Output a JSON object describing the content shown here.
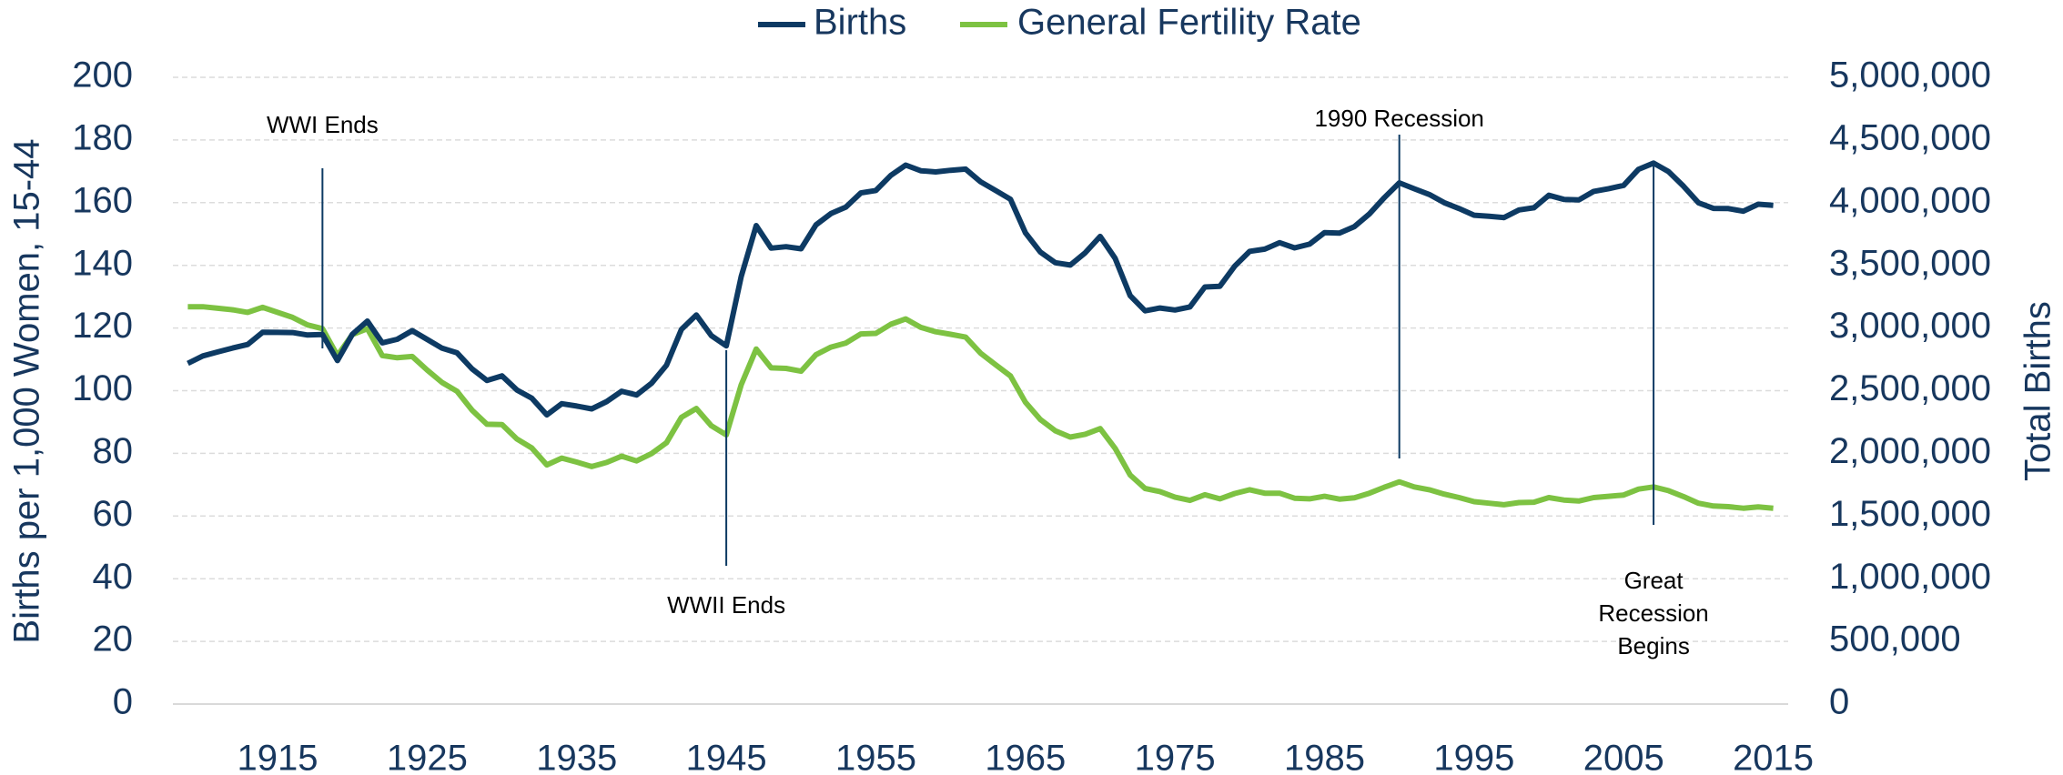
{
  "chart_data": {
    "type": "line",
    "x": [
      1909,
      1910,
      1911,
      1912,
      1913,
      1914,
      1915,
      1916,
      1917,
      1918,
      1919,
      1920,
      1921,
      1922,
      1923,
      1924,
      1925,
      1926,
      1927,
      1928,
      1929,
      1930,
      1931,
      1932,
      1933,
      1934,
      1935,
      1936,
      1937,
      1938,
      1939,
      1940,
      1941,
      1942,
      1943,
      1944,
      1945,
      1946,
      1947,
      1948,
      1949,
      1950,
      1951,
      1952,
      1953,
      1954,
      1955,
      1956,
      1957,
      1958,
      1959,
      1960,
      1961,
      1962,
      1963,
      1964,
      1965,
      1966,
      1967,
      1968,
      1969,
      1970,
      1971,
      1972,
      1973,
      1974,
      1975,
      1976,
      1977,
      1978,
      1979,
      1980,
      1981,
      1982,
      1983,
      1984,
      1985,
      1986,
      1987,
      1988,
      1989,
      1990,
      1991,
      1992,
      1993,
      1994,
      1995,
      1996,
      1997,
      1998,
      1999,
      2000,
      2001,
      2002,
      2003,
      2004,
      2005,
      2006,
      2007,
      2008,
      2009,
      2010,
      2011,
      2012,
      2013,
      2014,
      2015
    ],
    "series": [
      {
        "name": "Births",
        "color": "#0d3a63",
        "axis": "y2",
        "values": [
          2718000,
          2777000,
          2809000,
          2840000,
          2869000,
          2966000,
          2965000,
          2964000,
          2944000,
          2948000,
          2740000,
          2950000,
          3055000,
          2882000,
          2910000,
          2979000,
          2909000,
          2839000,
          2802000,
          2674000,
          2582000,
          2618000,
          2506000,
          2440000,
          2307000,
          2396000,
          2377000,
          2355000,
          2413000,
          2496000,
          2466000,
          2559000,
          2703000,
          2989000,
          3104000,
          2939000,
          2858000,
          3411000,
          3817000,
          3637000,
          3649000,
          3632000,
          3823000,
          3913000,
          3965000,
          4078000,
          4097000,
          4218000,
          4300000,
          4255000,
          4245000,
          4258000,
          4268000,
          4167000,
          4098000,
          4027000,
          3760000,
          3606000,
          3521000,
          3502000,
          3600000,
          3731000,
          3556000,
          3258000,
          3137000,
          3160000,
          3144000,
          3168000,
          3327000,
          3333000,
          3494000,
          3612000,
          3629000,
          3681000,
          3639000,
          3669000,
          3761000,
          3757000,
          3809000,
          3910000,
          4041000,
          4158000,
          4111000,
          4065000,
          4000000,
          3953000,
          3900000,
          3891000,
          3881000,
          3942000,
          3959000,
          4059000,
          4026000,
          4022000,
          4090000,
          4112000,
          4138000,
          4266000,
          4316000,
          4248000,
          4131000,
          3999000,
          3954000,
          3953000,
          3932000,
          3988000,
          3978000
        ]
      },
      {
        "name": "General Fertility Rate",
        "color": "#7dc242",
        "axis": "y",
        "values": [
          126.8,
          126.8,
          126.3,
          125.8,
          125.0,
          126.6,
          125.0,
          123.4,
          121.0,
          119.8,
          111.2,
          117.9,
          119.8,
          111.2,
          110.5,
          110.9,
          106.6,
          102.6,
          99.8,
          93.8,
          89.3,
          89.2,
          84.6,
          81.7,
          76.3,
          78.5,
          77.2,
          75.8,
          77.1,
          79.1,
          77.6,
          79.9,
          83.4,
          91.5,
          94.3,
          88.8,
          85.9,
          101.9,
          113.3,
          107.3,
          107.1,
          106.2,
          111.5,
          113.9,
          115.2,
          118.1,
          118.3,
          121.2,
          122.9,
          120.2,
          118.8,
          118.0,
          117.1,
          112.0,
          108.3,
          104.7,
          96.3,
          90.8,
          87.2,
          85.2,
          86.1,
          87.9,
          81.6,
          73.1,
          68.8,
          67.8,
          66.0,
          65.0,
          66.8,
          65.5,
          67.2,
          68.4,
          67.3,
          67.3,
          65.7,
          65.5,
          66.3,
          65.4,
          65.8,
          67.3,
          69.2,
          70.9,
          69.3,
          68.4,
          67.0,
          65.9,
          64.6,
          64.1,
          63.6,
          64.3,
          64.4,
          65.9,
          65.1,
          64.8,
          65.9,
          66.3,
          66.7,
          68.6,
          69.3,
          68.1,
          66.2,
          64.1,
          63.2,
          63.0,
          62.5,
          62.9,
          62.5
        ]
      }
    ],
    "ylabel": "Births per 1,000 Women, 15-44",
    "y2label": "Total Births",
    "xlim": [
      1908,
      2016
    ],
    "xticks": [
      1915,
      1925,
      1935,
      1945,
      1955,
      1965,
      1975,
      1985,
      1995,
      2005,
      2015
    ],
    "ylim": [
      0,
      200
    ],
    "yticks": [
      0,
      20,
      40,
      60,
      80,
      100,
      120,
      140,
      160,
      180,
      200
    ],
    "y2lim": [
      0,
      5000000
    ],
    "y2ticks": [
      {
        "value": 0,
        "label": "0"
      },
      {
        "value": 500000,
        "label": "500,000"
      },
      {
        "value": 1000000,
        "label": "1,000,000"
      },
      {
        "value": 1500000,
        "label": "1,500,000"
      },
      {
        "value": 2000000,
        "label": "2,000,000"
      },
      {
        "value": 2500000,
        "label": "2,500,000"
      },
      {
        "value": 3000000,
        "label": "3,000,000"
      },
      {
        "value": 3500000,
        "label": "3,500,000"
      },
      {
        "value": 4000000,
        "label": "4,000,000"
      },
      {
        "value": 4500000,
        "label": "4,500,000"
      },
      {
        "value": 5000000,
        "label": "5,000,000"
      }
    ],
    "grid": true,
    "legend": "top",
    "annotations": [
      {
        "x": 1918,
        "lines": [
          "WWI Ends"
        ]
      },
      {
        "x": 1945,
        "lines": [
          "WWII Ends"
        ]
      },
      {
        "x": 1990,
        "lines": [
          "1990 Recession"
        ]
      },
      {
        "x": 2007,
        "lines": [
          "Great",
          "Recession",
          "Begins"
        ]
      }
    ]
  }
}
